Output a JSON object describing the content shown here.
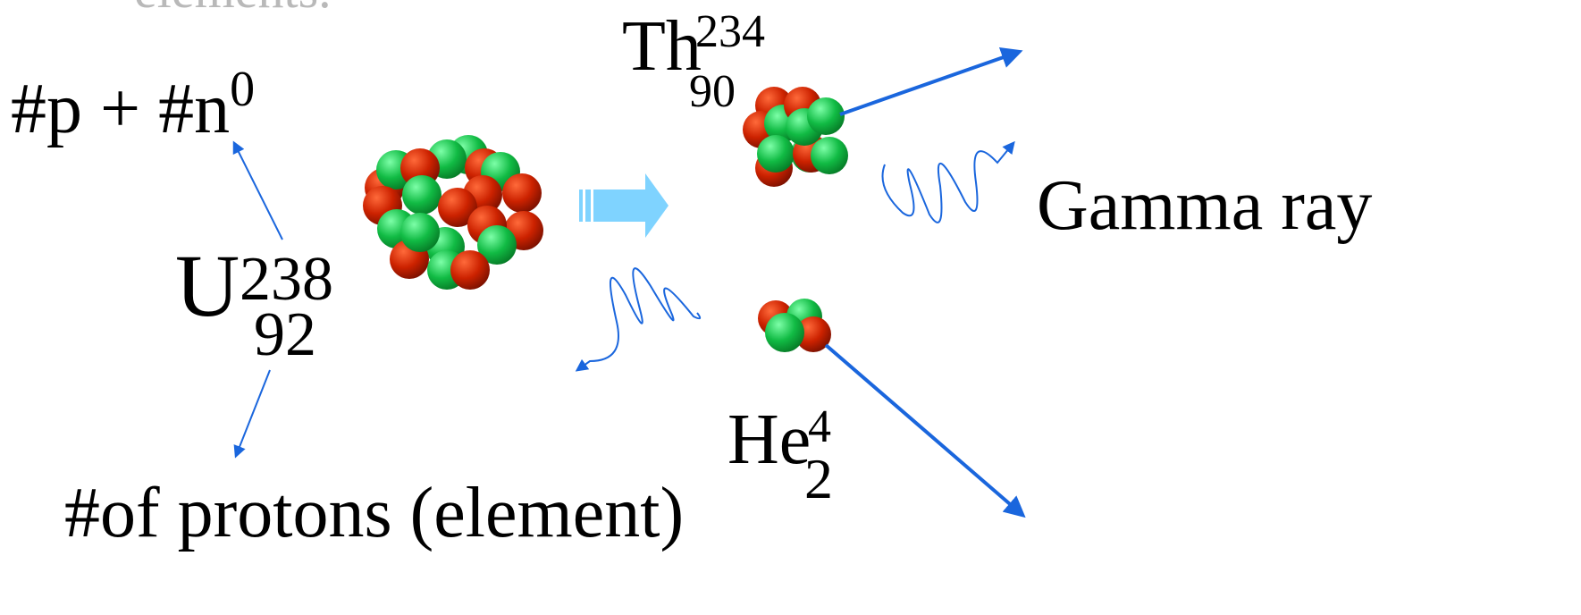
{
  "slide": {
    "cut_text": "elements.",
    "mass_number_caption": "#p + #n",
    "mass_number_caption_sup": "0",
    "proton_caption": "#of protons (element)",
    "gamma_label": "Gamma ray"
  },
  "uranium": {
    "symbol": "U",
    "mass": "238",
    "atomic": "92"
  },
  "thorium": {
    "symbol": "Th",
    "mass": "234",
    "atomic": "90"
  },
  "helium": {
    "symbol": "He",
    "mass": "4",
    "atomic": "2"
  },
  "colors": {
    "proton": "#cc2200",
    "neutron": "#11bb44",
    "arrow_blue": "#1a66dd",
    "reaction_arrow": "#7fd3ff",
    "faded_text": "#b9b9b9"
  }
}
